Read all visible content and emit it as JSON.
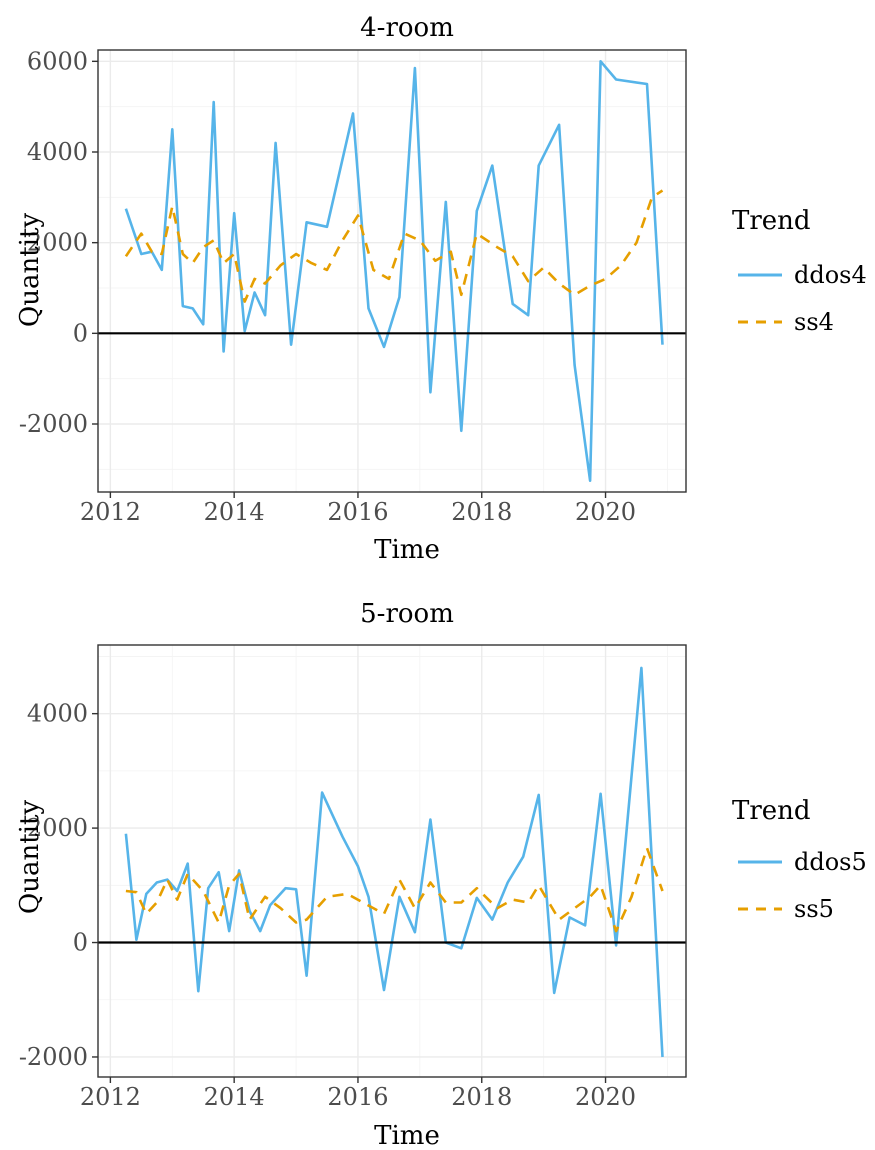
{
  "chart_data": [
    {
      "type": "line",
      "title": "4-room",
      "xlabel": "Time",
      "ylabel": "Quantity",
      "xlim": [
        2011.8,
        2021.3
      ],
      "ylim": [
        -3500,
        6250
      ],
      "x_ticks": [
        2012,
        2014,
        2016,
        2018,
        2020
      ],
      "y_ticks": [
        -2000,
        0,
        2000,
        4000,
        6000
      ],
      "x_tick_labels": [
        "2012",
        "2014",
        "2016",
        "2018",
        "2020"
      ],
      "y_tick_labels": [
        "-2000",
        "0",
        "2000",
        "4000",
        "6000"
      ],
      "hline": 0,
      "grid": true,
      "legend": {
        "title": "Trend",
        "position": "right"
      },
      "series": [
        {
          "name": "ddos4",
          "color": "#56B4E9",
          "style": "solid",
          "x": [
            2012.25,
            2012.5,
            2012.67,
            2012.83,
            2013.0,
            2013.17,
            2013.33,
            2013.5,
            2013.67,
            2013.83,
            2014.0,
            2014.17,
            2014.33,
            2014.5,
            2014.67,
            2014.92,
            2015.17,
            2015.5,
            2015.92,
            2016.17,
            2016.42,
            2016.67,
            2016.92,
            2017.17,
            2017.42,
            2017.67,
            2017.92,
            2018.17,
            2018.5,
            2018.75,
            2018.92,
            2019.25,
            2019.5,
            2019.75,
            2019.92,
            2020.17,
            2020.67,
            2020.92
          ],
          "y": [
            2750,
            1750,
            1800,
            1400,
            4500,
            600,
            550,
            200,
            5100,
            -400,
            2650,
            50,
            900,
            400,
            4200,
            -250,
            2450,
            2350,
            4850,
            550,
            -300,
            800,
            5850,
            -1300,
            2900,
            -2150,
            2700,
            3700,
            650,
            400,
            3700,
            4600,
            -700,
            -3250,
            6000,
            5600,
            5500,
            -250
          ]
        },
        {
          "name": "ss4",
          "color": "#E69F00",
          "style": "dashed",
          "x": [
            2012.25,
            2012.5,
            2012.67,
            2012.83,
            2013.0,
            2013.17,
            2013.33,
            2013.5,
            2013.67,
            2013.83,
            2014.0,
            2014.17,
            2014.33,
            2014.5,
            2014.75,
            2015.0,
            2015.25,
            2015.5,
            2015.75,
            2016.0,
            2016.25,
            2016.5,
            2016.75,
            2017.0,
            2017.25,
            2017.5,
            2017.67,
            2017.92,
            2018.25,
            2018.5,
            2018.75,
            2019.0,
            2019.25,
            2019.5,
            2019.75,
            2020.0,
            2020.25,
            2020.5,
            2020.75,
            2020.92
          ],
          "y": [
            1700,
            2200,
            1800,
            1750,
            2800,
            1750,
            1550,
            1900,
            2050,
            1550,
            1750,
            700,
            1200,
            1100,
            1500,
            1750,
            1550,
            1400,
            2050,
            2600,
            1400,
            1200,
            2200,
            2050,
            1600,
            1800,
            850,
            2200,
            1900,
            1700,
            1150,
            1450,
            1100,
            850,
            1050,
            1200,
            1500,
            2000,
            3000,
            3150
          ]
        }
      ]
    },
    {
      "type": "line",
      "title": "5-room",
      "xlabel": "Time",
      "ylabel": "Quantity",
      "xlim": [
        2011.8,
        2021.3
      ],
      "ylim": [
        -2350,
        5200
      ],
      "x_ticks": [
        2012,
        2014,
        2016,
        2018,
        2020
      ],
      "y_ticks": [
        -2000,
        0,
        2000,
        4000
      ],
      "x_tick_labels": [
        "2012",
        "2014",
        "2016",
        "2018",
        "2020"
      ],
      "y_tick_labels": [
        "-2000",
        "0",
        "2000",
        "4000"
      ],
      "hline": 0,
      "grid": true,
      "legend": {
        "title": "Trend",
        "position": "right"
      },
      "series": [
        {
          "name": "ddos5",
          "color": "#56B4E9",
          "style": "solid",
          "x": [
            2012.25,
            2012.42,
            2012.58,
            2012.75,
            2012.92,
            2013.08,
            2013.25,
            2013.42,
            2013.58,
            2013.75,
            2013.92,
            2014.08,
            2014.25,
            2014.42,
            2014.58,
            2014.83,
            2015.0,
            2015.17,
            2015.42,
            2015.75,
            2016.0,
            2016.17,
            2016.42,
            2016.67,
            2016.92,
            2017.17,
            2017.42,
            2017.67,
            2017.92,
            2018.17,
            2018.42,
            2018.67,
            2018.92,
            2019.17,
            2019.42,
            2019.67,
            2019.92,
            2020.17,
            2020.58,
            2020.92
          ],
          "y": [
            1900,
            50,
            850,
            1050,
            1100,
            900,
            1380,
            -850,
            950,
            1230,
            200,
            1260,
            550,
            200,
            650,
            950,
            930,
            -580,
            2620,
            1850,
            1330,
            800,
            -830,
            800,
            180,
            2150,
            0,
            -100,
            780,
            400,
            1050,
            1500,
            2580,
            -880,
            440,
            300,
            2600,
            -50,
            4800,
            -2000
          ]
        },
        {
          "name": "ss5",
          "color": "#E69F00",
          "style": "dashed",
          "x": [
            2012.25,
            2012.42,
            2012.58,
            2012.75,
            2012.92,
            2013.08,
            2013.25,
            2013.5,
            2013.75,
            2013.92,
            2014.08,
            2014.25,
            2014.5,
            2014.75,
            2015.0,
            2015.17,
            2015.5,
            2015.83,
            2016.08,
            2016.42,
            2016.67,
            2016.92,
            2017.17,
            2017.42,
            2017.67,
            2017.92,
            2018.25,
            2018.5,
            2018.75,
            2018.92,
            2019.25,
            2019.5,
            2019.75,
            2019.92,
            2020.17,
            2020.42,
            2020.67,
            2020.92
          ],
          "y": [
            900,
            880,
            500,
            700,
            1100,
            750,
            1200,
            900,
            350,
            1000,
            1200,
            400,
            800,
            600,
            350,
            400,
            800,
            850,
            700,
            500,
            1100,
            600,
            1050,
            700,
            700,
            950,
            600,
            750,
            700,
            1000,
            400,
            600,
            800,
            1000,
            200,
            800,
            1650,
            900
          ]
        }
      ]
    }
  ]
}
